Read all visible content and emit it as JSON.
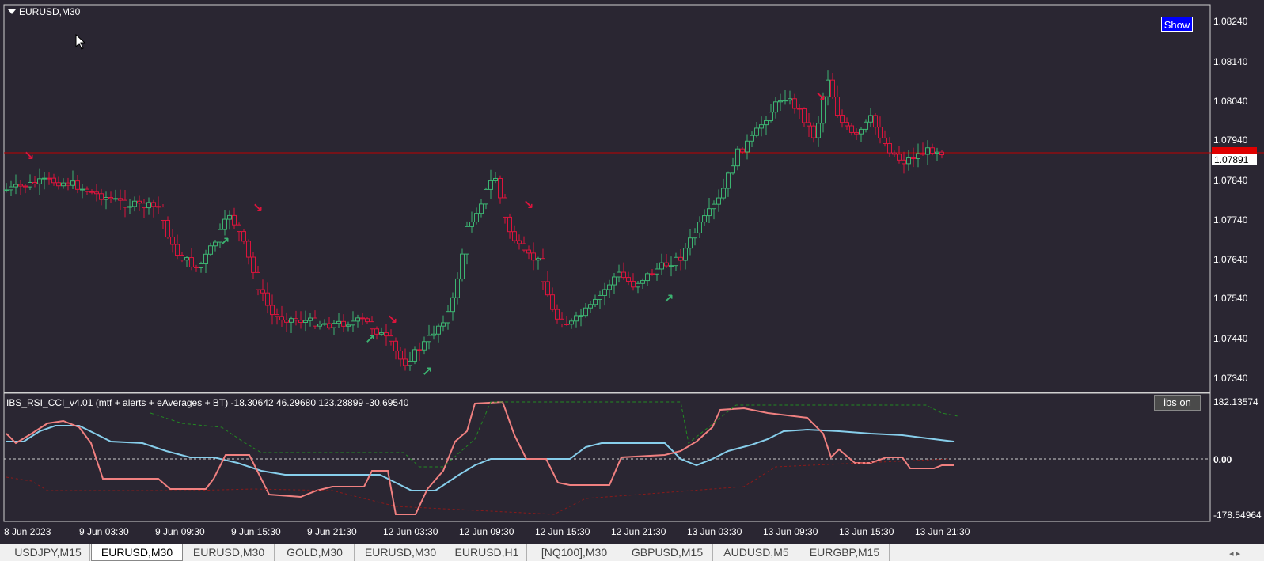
{
  "window": {
    "title": "EURUSD,M30",
    "show_button": "Show"
  },
  "main_chart": {
    "current_price": "1.07891",
    "price_labels": [
      "1.08240",
      "1.08140",
      "1.08040",
      "1.07940",
      "1.07840",
      "1.07740",
      "1.07640",
      "1.07540",
      "1.07440",
      "1.07340"
    ]
  },
  "indicator": {
    "label": "IBS_RSI_CCI_v4.01 (mtf + alerts + eAverages + BT) -18.30642 46.29680 123.28899 -30.69540",
    "button": "ibs on",
    "levels": [
      "182.13574",
      "0.00",
      "-178.54964"
    ]
  },
  "time_axis": [
    "8 Jun 2023",
    "9 Jun 03:30",
    "9 Jun 09:30",
    "9 Jun 15:30",
    "9 Jun 21:30",
    "12 Jun 03:30",
    "12 Jun 09:30",
    "12 Jun 15:30",
    "12 Jun 21:30",
    "13 Jun 03:30",
    "13 Jun 09:30",
    "13 Jun 15:30",
    "13 Jun 21:30"
  ],
  "tabs": [
    {
      "label": "USDJPY,M15",
      "active": false
    },
    {
      "label": "EURUSD,M30",
      "active": true
    },
    {
      "label": "EURUSD,M30",
      "active": false
    },
    {
      "label": "GOLD,M30",
      "active": false
    },
    {
      "label": "EURUSD,M30",
      "active": false
    },
    {
      "label": "EURUSD,H1",
      "active": false
    },
    {
      "label": "[NQ100],M30",
      "active": false
    },
    {
      "label": "GBPUSD,M15",
      "active": false
    },
    {
      "label": "AUDUSD,M5",
      "active": false
    },
    {
      "label": "EURGBP,M15",
      "active": false
    }
  ],
  "colors": {
    "bull": "#3cb371",
    "bear": "#dc143c",
    "rsi": "#87ceeb",
    "ibs": "#f08080",
    "price_line": "#c00000",
    "background": "#2a2632"
  },
  "icons": {
    "dropdown": "triangle-down-icon",
    "scroll": "scroll-arrows-icon"
  }
}
